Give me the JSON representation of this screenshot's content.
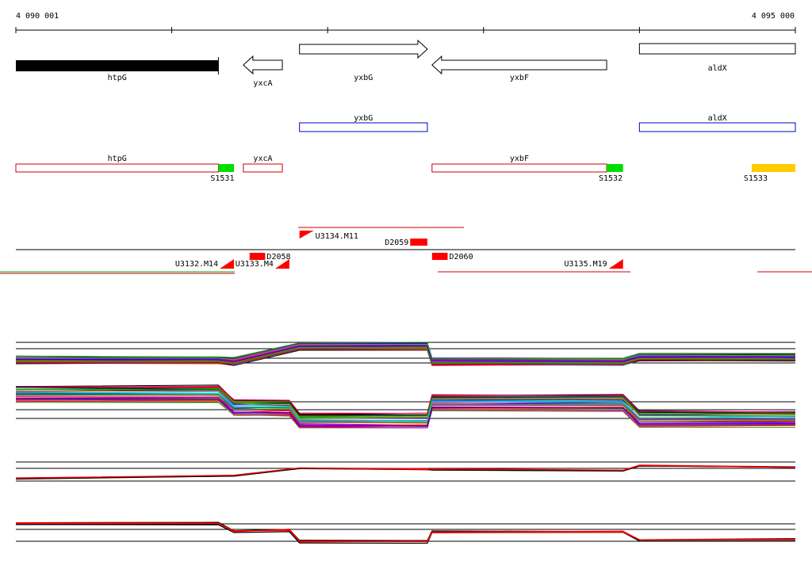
{
  "scale": {
    "start_label": "4 090 001",
    "end_label": "4 095 000",
    "start_bp": 4090001,
    "end_bp": 4095000
  },
  "colors": {
    "gene_fill": "#000000",
    "predicted": "#0000cc",
    "operon": "#cc0000",
    "sigma_green": "#00dd00",
    "sigma_yellow": "#ffcc00",
    "marker_red": "#ff0000"
  },
  "genes": [
    {
      "name": "htpG",
      "start": 4090001,
      "end": 4091300,
      "strand": "+",
      "style": "filled"
    },
    {
      "name": "yxcA",
      "start": 4091460,
      "end": 4091710,
      "strand": "-",
      "style": "arrow"
    },
    {
      "name": "yxbG",
      "start": 4091820,
      "end": 4092640,
      "strand": "+",
      "style": "arrow"
    },
    {
      "name": "yxbF",
      "start": 4092670,
      "end": 4093790,
      "strand": "-",
      "style": "arrow"
    },
    {
      "name": "aldX",
      "start": 4094000,
      "end": 4095000,
      "strand": "+",
      "style": "box"
    }
  ],
  "predicted_genes": [
    {
      "name": "yxbG",
      "start": 4091820,
      "end": 4092640
    },
    {
      "name": "aldX",
      "start": 4094000,
      "end": 4095000
    }
  ],
  "operons": [
    {
      "name": "htpG",
      "start": 4090001,
      "end": 4091300
    },
    {
      "name": "yxcA",
      "start": 4091460,
      "end": 4091710
    },
    {
      "name": "yxbF",
      "start": 4092670,
      "end": 4093790
    }
  ],
  "sigma_sites": [
    {
      "name": "S1531",
      "start": 4091300,
      "end": 4091400,
      "color": "green"
    },
    {
      "name": "S1532",
      "start": 4093790,
      "end": 4093895,
      "color": "green"
    },
    {
      "name": "S1533",
      "start": 4094720,
      "end": 4095000,
      "color": "yellow"
    }
  ],
  "transcripts": [
    {
      "name": "U3132.M14",
      "start": 4091400,
      "strand": "-"
    },
    {
      "name": "U3133.M4",
      "start": 4091755,
      "strand": "-"
    },
    {
      "name": "U3134.M11",
      "start": 4091820,
      "strand": "+"
    },
    {
      "name": "U3135.M19",
      "start": 4093895,
      "strand": "-"
    }
  ],
  "downshifts": [
    {
      "name": "D2058",
      "start": 4091500,
      "end": 4091600
    },
    {
      "name": "D2059",
      "start": 4092530,
      "end": 4092640
    },
    {
      "name": "D2060",
      "start": 4092670,
      "end": 4092770
    }
  ],
  "expression_panels": [
    {
      "id": "panel-1",
      "profile": [
        [
          4090001,
          0.7
        ],
        [
          4091300,
          0.7
        ],
        [
          4091400,
          0.75
        ],
        [
          4091820,
          0.2
        ],
        [
          4092640,
          0.2
        ],
        [
          4092670,
          0.75
        ],
        [
          4093895,
          0.75
        ],
        [
          4094000,
          0.6
        ],
        [
          4095000,
          0.6
        ]
      ]
    },
    {
      "id": "panel-2",
      "profile": [
        [
          4090001,
          0.25
        ],
        [
          4091300,
          0.25
        ],
        [
          4091400,
          0.55
        ],
        [
          4091755,
          0.55
        ],
        [
          4091820,
          0.85
        ],
        [
          4092640,
          0.85
        ],
        [
          4092670,
          0.45
        ],
        [
          4093895,
          0.45
        ],
        [
          4094000,
          0.8
        ],
        [
          4095000,
          0.8
        ]
      ]
    },
    {
      "id": "panel-3",
      "profile": [
        [
          4090001,
          0.65
        ],
        [
          4091400,
          0.55
        ],
        [
          4091820,
          0.25
        ],
        [
          4092640,
          0.3
        ],
        [
          4092670,
          0.3
        ],
        [
          4093895,
          0.35
        ],
        [
          4094000,
          0.15
        ],
        [
          4095000,
          0.2
        ]
      ]
    },
    {
      "id": "panel-4",
      "profile": [
        [
          4090001,
          0.3
        ],
        [
          4091300,
          0.3
        ],
        [
          4091400,
          0.55
        ],
        [
          4091755,
          0.5
        ],
        [
          4091820,
          0.85
        ],
        [
          4092640,
          0.85
        ],
        [
          4092670,
          0.55
        ],
        [
          4093895,
          0.55
        ],
        [
          4094000,
          0.8
        ],
        [
          4095000,
          0.8
        ]
      ]
    }
  ]
}
